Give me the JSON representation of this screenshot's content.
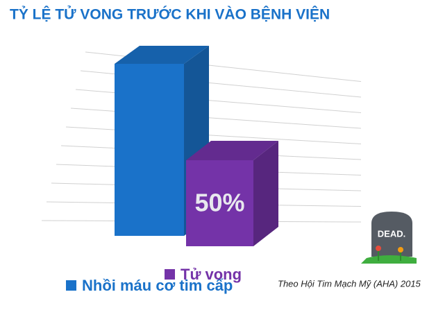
{
  "chart_data": {
    "type": "bar3d",
    "title": "TỶ LỆ TỬ VONG TRƯỚC KHI VÀO BỆNH VIỆN",
    "categories": [
      null
    ],
    "series": [
      {
        "name": "Nhồi máu cơ tim cấp",
        "color": "#1a72c9",
        "values": [
          100
        ]
      },
      {
        "name": "Tử vong",
        "color": "#7433a8",
        "values": [
          50
        ],
        "value_labels": [
          "50%"
        ]
      }
    ],
    "grid": true,
    "source": "Theo Hội Tim Mạch Mỹ (AHA) 2015",
    "icon_text": "DEAD."
  }
}
